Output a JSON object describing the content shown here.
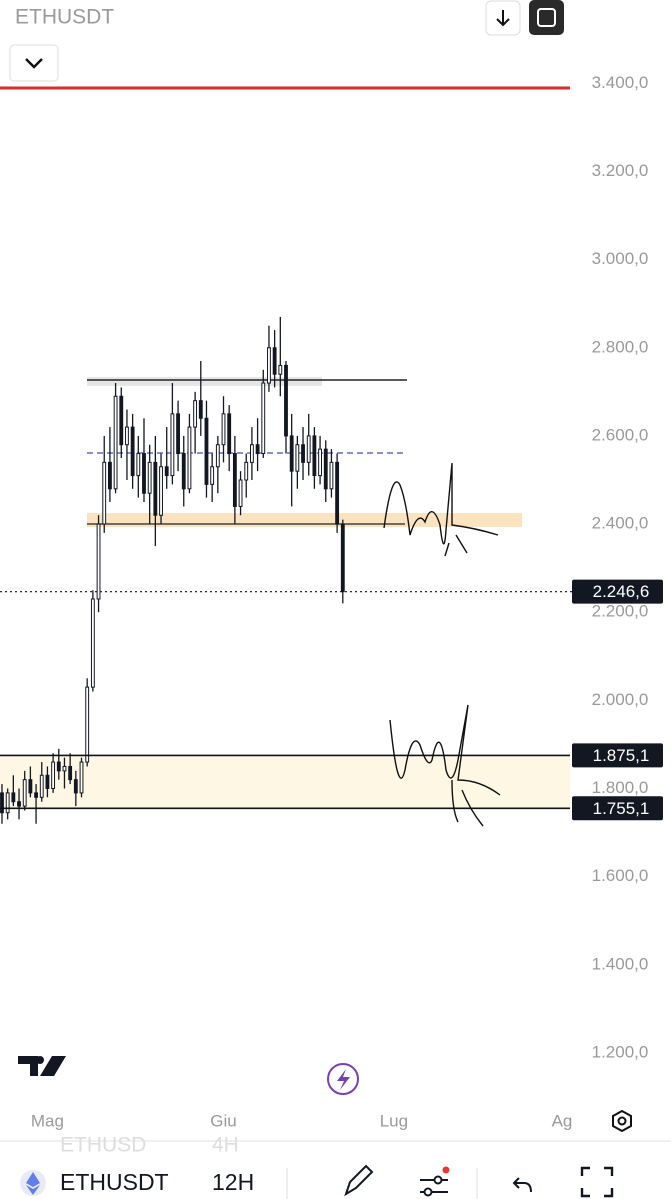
{
  "header": {
    "symbol": "ETHUSDT"
  },
  "footer": {
    "symbol": "ETHUSDT",
    "interval": "12H",
    "ghost_symbol": "ETHUSD",
    "ghost_interval": "4H"
  },
  "chart_data": {
    "type": "candlestick",
    "color": "#131722",
    "open": [
      1790,
      1745,
      1790,
      1770,
      1760,
      1820,
      1790,
      1780,
      1830,
      1800,
      1860,
      1840,
      1850,
      1820,
      1790,
      1860,
      2030,
      2230,
      2400,
      2540,
      2480,
      2690,
      2580,
      2620,
      2510,
      2560,
      2470,
      2540,
      2420,
      2530,
      2510,
      2650,
      2560,
      2480,
      2620,
      2680,
      2640,
      2490,
      2530,
      2580,
      2650,
      2560,
      2440,
      2500,
      2540,
      2580,
      2560,
      2720,
      2800,
      2740,
      2760,
      2600,
      2520,
      2580,
      2540,
      2600,
      2510,
      2570,
      2480,
      2540,
      2400
    ],
    "high": [
      1810,
      1800,
      1830,
      1800,
      1840,
      1850,
      1810,
      1860,
      1850,
      1880,
      1890,
      1870,
      1880,
      1840,
      1870,
      2050,
      2250,
      2420,
      2600,
      2620,
      2720,
      2710,
      2660,
      2650,
      2600,
      2640,
      2580,
      2600,
      2560,
      2620,
      2720,
      2680,
      2600,
      2650,
      2700,
      2770,
      2680,
      2560,
      2600,
      2690,
      2670,
      2600,
      2520,
      2560,
      2620,
      2640,
      2750,
      2850,
      2840,
      2870,
      2770,
      2650,
      2600,
      2620,
      2650,
      2620,
      2600,
      2590,
      2570,
      2560,
      2410
    ],
    "low": [
      1720,
      1730,
      1760,
      1730,
      1750,
      1780,
      1720,
      1770,
      1780,
      1790,
      1820,
      1800,
      1810,
      1760,
      1780,
      1850,
      2020,
      2200,
      2380,
      2450,
      2470,
      2550,
      2500,
      2480,
      2460,
      2450,
      2400,
      2350,
      2400,
      2480,
      2490,
      2520,
      2440,
      2470,
      2560,
      2600,
      2460,
      2450,
      2470,
      2540,
      2520,
      2400,
      2420,
      2460,
      2500,
      2520,
      2550,
      2700,
      2710,
      2690,
      2560,
      2440,
      2480,
      2500,
      2510,
      2480,
      2490,
      2450,
      2460,
      2380,
      2220
    ],
    "close": [
      1745,
      1790,
      1770,
      1760,
      1820,
      1790,
      1780,
      1830,
      1800,
      1860,
      1840,
      1850,
      1820,
      1790,
      1860,
      2030,
      2230,
      2400,
      2540,
      2480,
      2690,
      2580,
      2620,
      2510,
      2560,
      2470,
      2540,
      2420,
      2530,
      2510,
      2650,
      2560,
      2480,
      2620,
      2680,
      2640,
      2490,
      2530,
      2580,
      2650,
      2560,
      2440,
      2500,
      2540,
      2580,
      2560,
      2720,
      2800,
      2740,
      2760,
      2600,
      2520,
      2580,
      2540,
      2600,
      2510,
      2570,
      2480,
      2540,
      2400,
      2246.6
    ],
    "xlim": [
      -0.35,
      100
    ],
    "xticks": [
      {
        "value": 8,
        "label": "Mag"
      },
      {
        "value": 39,
        "label": "Giu"
      },
      {
        "value": 69,
        "label": "Lug"
      },
      {
        "value": 100,
        "label": "Ag"
      }
    ],
    "ylim": [
      1100,
      3580
    ],
    "yticks": [
      {
        "value": 3400,
        "label": "3.400,0"
      },
      {
        "value": 3200,
        "label": "3.200,0"
      },
      {
        "value": 3000,
        "label": "3.000,0"
      },
      {
        "value": 2800,
        "label": "2.800,0"
      },
      {
        "value": 2600,
        "label": "2.600,0"
      },
      {
        "value": 2400,
        "label": "2.400,0"
      },
      {
        "value": 2200,
        "label": "2.200,0"
      },
      {
        "value": 2000,
        "label": "2.000,0"
      },
      {
        "value": 1800,
        "label": "1.800,0"
      },
      {
        "value": 1600,
        "label": "1.600,0"
      },
      {
        "value": 1400,
        "label": "1.400,0"
      },
      {
        "value": 1200,
        "label": "1.200,0"
      }
    ],
    "price_lines": [
      {
        "value": 2246.6,
        "label": "2.246,6",
        "style": "dotted"
      },
      {
        "value": 1875.1,
        "label": "1.875,1",
        "style": "solid"
      },
      {
        "value": 1755.1,
        "label": "1.755,1",
        "style": "solid"
      }
    ]
  }
}
